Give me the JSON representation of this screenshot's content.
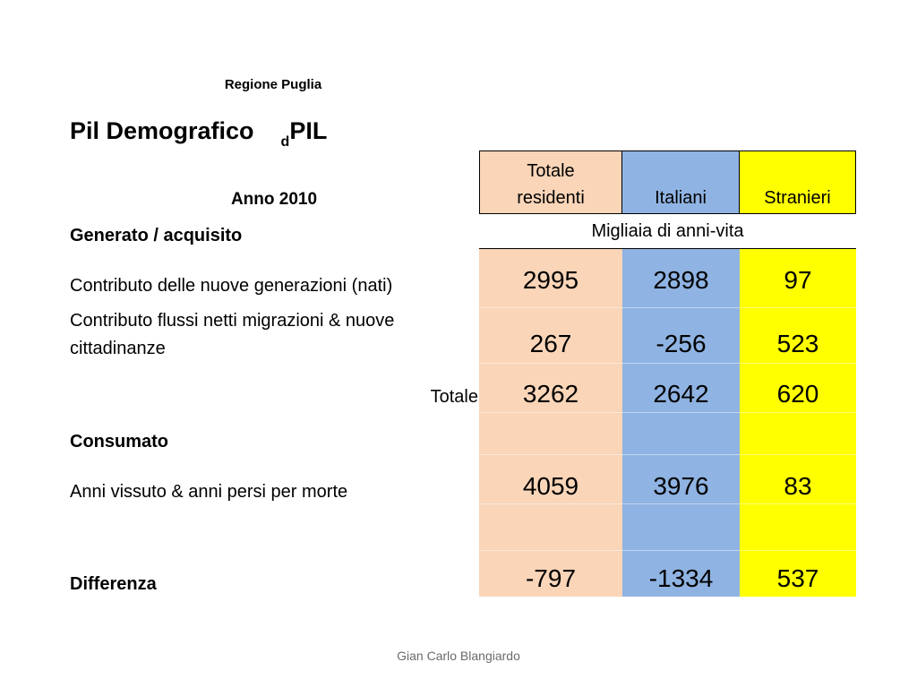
{
  "header": {
    "region": "Regione Puglia",
    "title": "Pil Demografico",
    "title_sub": "d",
    "title_suffix": "PIL",
    "year": "Anno 2010"
  },
  "columns": [
    "Totale residenti",
    "Italiani",
    "Stranieri"
  ],
  "column_colors": [
    "#fad5b8",
    "#8fb3e2",
    "#ffff00"
  ],
  "unit": "Migliaia di anni-vita",
  "sections": {
    "generated": "Generato / acquisito",
    "consumed": "Consumato",
    "difference": "Differenza"
  },
  "rows": {
    "births": {
      "label": "Contributo delle nuove generazioni (nati)",
      "values": [
        "2995",
        "2898",
        "97"
      ]
    },
    "migration": {
      "label_line1": "Contributo flussi netti migrazioni & nuove",
      "label_line2": "cittadinanze",
      "values": [
        "267",
        "-256",
        "523"
      ]
    },
    "total": {
      "label": "Totale",
      "values": [
        "3262",
        "2642",
        "620"
      ]
    },
    "deaths": {
      "label": "Anni vissuto & anni persi per morte",
      "values": [
        "4059",
        "3976",
        "83"
      ]
    },
    "difference": {
      "values": [
        "-797",
        "-1334",
        "537"
      ]
    }
  },
  "footer": "Gian Carlo Blangiardo"
}
